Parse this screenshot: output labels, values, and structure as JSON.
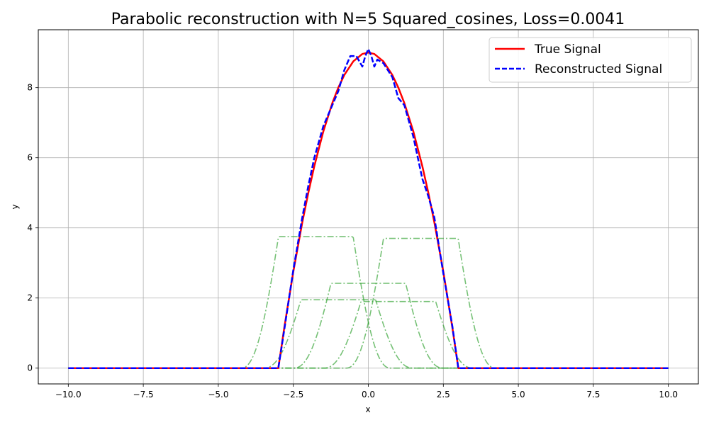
{
  "chart_data": {
    "type": "line",
    "title": "Parabolic reconstruction with N=5 Squared_cosines, Loss=0.0041",
    "xlabel": "x",
    "ylabel": "y",
    "xlim": [
      -11.0,
      11.0
    ],
    "ylim": [
      -0.45,
      9.65
    ],
    "xticks": [
      -10.0,
      -7.5,
      -5.0,
      -2.5,
      0.0,
      2.5,
      5.0,
      7.5,
      10.0
    ],
    "xtick_labels": [
      "−10.0",
      "−7.5",
      "−5.0",
      "−2.5",
      "0.0",
      "2.5",
      "5.0",
      "7.5",
      "10.0"
    ],
    "yticks": [
      0,
      2,
      4,
      6,
      8
    ],
    "ytick_labels": [
      "0",
      "2",
      "4",
      "6",
      "8"
    ],
    "grid": true,
    "legend_position": "top-right",
    "colors": {
      "true_signal": "#ff0000",
      "reconstructed_signal": "#0000ff",
      "components": "#2ca02c"
    },
    "series": [
      {
        "name": "True Signal",
        "style": "solid",
        "x": [
          -10,
          -3,
          -2.8,
          -2.5,
          -2.2,
          -2,
          -1.8,
          -1.5,
          -1.2,
          -1,
          -0.8,
          -0.5,
          -0.2,
          0,
          0.2,
          0.5,
          0.8,
          1,
          1.2,
          1.5,
          1.8,
          2,
          2.2,
          2.5,
          2.8,
          3,
          10
        ],
        "y": [
          0,
          0,
          1.16,
          2.75,
          4.16,
          5.0,
          5.76,
          6.75,
          7.56,
          8.0,
          8.36,
          8.75,
          8.96,
          9.0,
          8.96,
          8.75,
          8.36,
          8.0,
          7.56,
          6.75,
          5.76,
          5.0,
          4.16,
          2.75,
          1.16,
          0,
          0
        ]
      },
      {
        "name": "Reconstructed Signal",
        "style": "dashed",
        "x": [
          -10,
          -3,
          -2.8,
          -2.5,
          -2.2,
          -2,
          -1.8,
          -1.5,
          -1.2,
          -1,
          -0.8,
          -0.6,
          -0.4,
          -0.2,
          -0.1,
          0,
          0.1,
          0.2,
          0.3,
          0.5,
          0.8,
          1,
          1.2,
          1.5,
          1.8,
          2,
          2.2,
          2.5,
          2.8,
          3,
          10
        ],
        "y": [
          0,
          0,
          1.1,
          2.8,
          4.3,
          5.2,
          6.0,
          6.9,
          7.5,
          7.9,
          8.5,
          8.9,
          8.9,
          8.6,
          8.9,
          9.1,
          8.9,
          8.6,
          8.8,
          8.7,
          8.3,
          7.7,
          7.5,
          6.6,
          5.4,
          4.9,
          4.3,
          2.7,
          1.2,
          0,
          0
        ]
      }
    ],
    "components": [
      {
        "center": -1.75,
        "width": 2.5,
        "amplitude": 3.75
      },
      {
        "center": -1.0,
        "width": 2.5,
        "amplitude": 1.95
      },
      {
        "center": 0.0,
        "width": 2.5,
        "amplitude": 2.42
      },
      {
        "center": 1.0,
        "width": 2.5,
        "amplitude": 1.9
      },
      {
        "center": 1.75,
        "width": 2.5,
        "amplitude": 3.7
      }
    ]
  }
}
